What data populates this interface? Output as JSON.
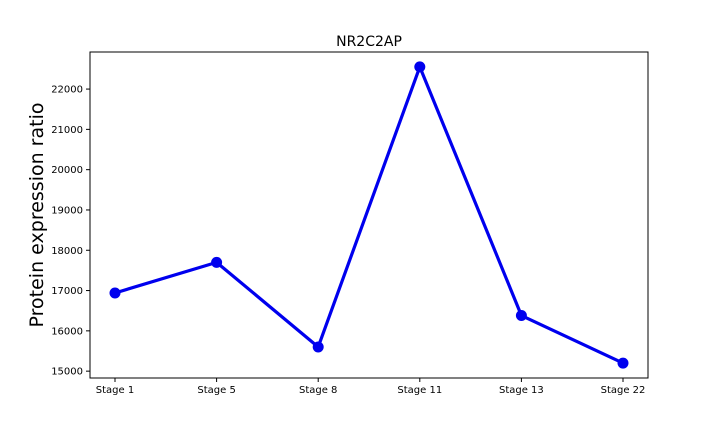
{
  "chart_data": {
    "type": "line",
    "title": "NR2C2AP",
    "xlabel": "",
    "ylabel": "Protein expression ratio",
    "categories": [
      "Stage 1",
      "Stage 5",
      "Stage 8",
      "Stage 11",
      "Stage 13",
      "Stage 22"
    ],
    "values": [
      16940,
      17700,
      15600,
      22550,
      16380,
      15200
    ],
    "ylim": [
      14830,
      22920
    ],
    "yticks": [
      15000,
      16000,
      17000,
      18000,
      19000,
      20000,
      21000,
      22000
    ],
    "grid": false,
    "line_color": "#0000ee"
  }
}
